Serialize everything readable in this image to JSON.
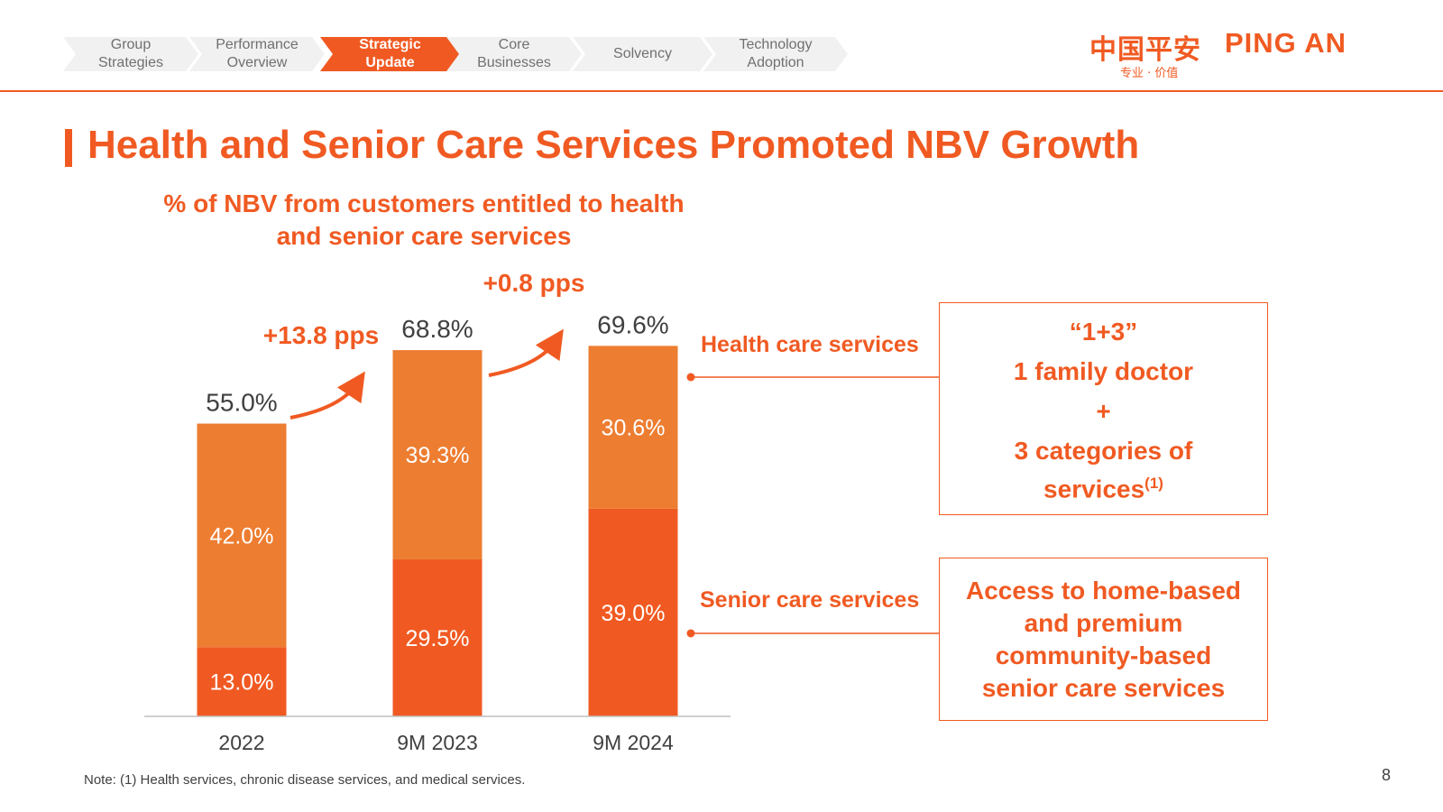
{
  "nav": {
    "items": [
      {
        "line1": "Group",
        "line2": "Strategies",
        "active": false
      },
      {
        "line1": "Performance",
        "line2": "Overview",
        "active": false
      },
      {
        "line1": "Strategic Update",
        "line2": "",
        "active": true
      },
      {
        "line1": "Core",
        "line2": "Businesses",
        "active": false
      },
      {
        "line1": "Solvency",
        "line2": "",
        "active": false
      },
      {
        "line1": "Technology",
        "line2": "Adoption",
        "active": false
      }
    ]
  },
  "logo": {
    "cn": "中国平安",
    "en": "PING AN",
    "tagline": "专业 · 价值"
  },
  "slide_title": "Health and Senior Care Services Promoted NBV Growth",
  "colors": {
    "accent": "#f05a22",
    "health": "#ed7d31",
    "senior": "#f05a22",
    "axis": "#bfbfbf",
    "nav_bg": "#f1f1f1"
  },
  "chart_data": {
    "type": "bar",
    "stacked": true,
    "title_line1": "% of NBV from customers entitled to health",
    "title_line2": "and senior care services",
    "categories": [
      "2022",
      "9M 2023",
      "9M 2024"
    ],
    "series": [
      {
        "name": "Senior care services",
        "values": [
          13.0,
          29.5,
          39.0
        ],
        "labels": [
          "13.0%",
          "29.5%",
          "39.0%"
        ],
        "color": "#f05a22"
      },
      {
        "name": "Health care services",
        "values": [
          42.0,
          39.3,
          30.6
        ],
        "labels": [
          "42.0%",
          "39.3%",
          "30.6%"
        ],
        "color": "#ed7d31"
      }
    ],
    "totals": [
      55.0,
      68.8,
      69.6
    ],
    "total_labels": [
      "55.0%",
      "68.8%",
      "69.6%"
    ],
    "growth_annotations": [
      "+13.8 pps",
      "+0.8 pps"
    ],
    "ylim": [
      0,
      75
    ],
    "grid": false
  },
  "callouts": {
    "health": {
      "label": "Health care services",
      "box_lines": [
        "“1+3”",
        "1 family doctor",
        "+",
        "3 categories of"
      ],
      "box_last": "services",
      "box_sup": "(1)"
    },
    "senior": {
      "label": "Senior care services",
      "box_lines": [
        "Access to home-based",
        "and premium",
        "community-based",
        "senior care services"
      ]
    }
  },
  "note": "Note: (1) Health services, chronic disease services, and medical services.",
  "page_number": "8"
}
